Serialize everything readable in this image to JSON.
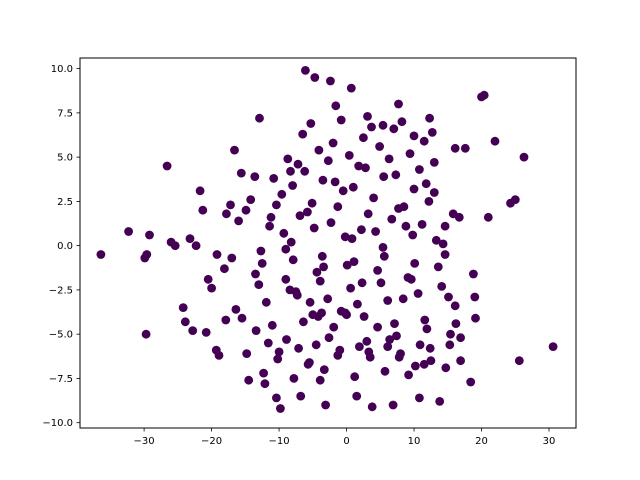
{
  "chart_data": {
    "type": "scatter",
    "title": "",
    "xlabel": "",
    "ylabel": "",
    "xlim": [
      -39.5,
      34
    ],
    "ylim": [
      -10.3,
      10.6
    ],
    "x_ticks": [
      -30,
      -20,
      -10,
      0,
      10,
      20,
      30
    ],
    "x_tick_labels": [
      "−30",
      "−20",
      "−10",
      "0",
      "10",
      "20",
      "30"
    ],
    "y_ticks": [
      -10.0,
      -7.5,
      -5.0,
      -2.5,
      0.0,
      2.5,
      5.0,
      7.5,
      10.0
    ],
    "y_tick_labels": [
      "−10.0",
      "−7.5",
      "−5.0",
      "−2.5",
      "0.0",
      "2.5",
      "5.0",
      "7.5",
      "10.0"
    ],
    "grid": false,
    "marker_color": "#440154",
    "series": [
      {
        "x": [
          -36.4,
          -32.3,
          -29.9,
          -29.6,
          -29.7,
          -29.2,
          -26.6,
          -26.0,
          -25.4,
          -24.2,
          -23.9,
          -23.2,
          -22.8,
          -22.3,
          -21.7,
          -21.3,
          -20.5,
          -20.0,
          -19.2,
          -18.9,
          -17.8,
          -17.2,
          -16.6,
          -15.6,
          -14.5,
          -13.6,
          -12.9,
          -12.1,
          -11.2,
          -10.4,
          -9.8,
          -9.0,
          -8.3,
          -7.5,
          -6.8,
          -6.1,
          -5.4,
          -4.7,
          -3.9,
          -3.1,
          -2.4,
          -1.6,
          -0.8,
          0.0,
          0.7,
          1.5,
          2.3,
          3.1,
          3.8,
          4.6,
          5.4,
          6.1,
          6.9,
          7.7,
          8.4,
          9.2,
          10.0,
          10.8,
          11.5,
          12.3,
          13.0,
          13.8,
          14.6,
          15.3,
          16.1,
          16.9,
          17.6,
          18.4,
          19.1,
          20.0,
          21.0,
          22.0,
          24.3,
          25.0,
          26.3,
          25.6,
          30.6,
          20.4,
          18.8,
          -5.0,
          -3.7,
          -4.2,
          -0.2,
          -20.8,
          -17.9,
          -13.4,
          -8.9,
          -4.5,
          3.0,
          7.4,
          11.9,
          16.2,
          -19.3,
          -14.8,
          -10.2,
          -5.7,
          -1.3,
          3.3,
          7.8,
          12.4,
          16.9,
          -16.4,
          -11.9,
          -7.3,
          -2.8,
          1.6,
          6.1,
          10.6,
          15.1,
          -18.1,
          -13.5,
          -9.0,
          -4.4,
          0.1,
          4.6,
          9.1,
          13.6,
          -12.7,
          -8.2,
          -3.6,
          0.8,
          5.4,
          9.8,
          14.3,
          -16.0,
          -11.4,
          -6.9,
          -2.3,
          2.2,
          6.7,
          11.2,
          15.8,
          -14.2,
          -9.6,
          -5.1,
          -0.5,
          4.0,
          8.5,
          13.0,
          -10.8,
          -6.2,
          -1.7,
          2.8,
          7.3,
          11.8,
          -8.7,
          -4.1,
          0.4,
          4.9,
          9.4,
          -6.5,
          -2.0,
          2.5,
          7.0,
          11.5,
          -12.3,
          -7.8,
          -3.3,
          1.2,
          5.7,
          10.2,
          14.7,
          -15.5,
          -11.0,
          -6.4,
          -1.9,
          2.6,
          7.1,
          11.6,
          16.1,
          -13.0,
          -8.4,
          -3.9,
          0.6,
          5.1,
          9.6,
          14.1,
          -9.3,
          -4.8,
          -0.2,
          4.3,
          8.8,
          13.3,
          -17.0,
          -12.5,
          -7.9,
          -3.4,
          1.1,
          5.6,
          10.1,
          14.6,
          19.0,
          -14.9,
          -10.4,
          -5.8,
          -1.3,
          3.2,
          7.7,
          12.2,
          16.7,
          -11.6,
          -7.1,
          -2.6,
          1.9,
          6.4,
          10.9,
          15.4,
          -8.0,
          -3.5,
          1.0,
          5.5,
          10.0,
          -5.3,
          -0.8,
          3.7,
          8.2,
          12.7,
          -10.0,
          -5.5,
          -1.0,
          3.5,
          8.0,
          12.5,
          -7.2,
          -2.7,
          1.8,
          6.3,
          10.8
        ],
        "y": [
          -0.5,
          0.8,
          -0.7,
          -0.5,
          -5.0,
          0.6,
          4.5,
          0.2,
          0.0,
          -3.5,
          -4.3,
          0.4,
          -4.8,
          0.0,
          3.1,
          2.0,
          -1.9,
          -2.4,
          -0.5,
          -6.2,
          1.8,
          2.3,
          5.4,
          4.1,
          -7.6,
          3.9,
          7.2,
          -7.8,
          1.6,
          -8.6,
          -9.2,
          -0.2,
          4.2,
          -2.6,
          -8.5,
          9.9,
          -3.2,
          9.5,
          -7.6,
          -9.0,
          9.3,
          7.9,
          -3.7,
          -3.9,
          8.9,
          -8.5,
          -2.1,
          7.3,
          -9.1,
          -4.6,
          6.8,
          -5.7,
          -9.0,
          8.0,
          -3.0,
          -7.3,
          6.2,
          -8.6,
          -6.7,
          7.2,
          4.7,
          -8.8,
          1.1,
          -5.6,
          5.5,
          -6.5,
          5.5,
          -7.7,
          -4.1,
          8.4,
          1.6,
          5.9,
          2.4,
          2.6,
          5.0,
          -6.5,
          -5.7,
          8.5,
          -1.6,
          -3.9,
          -3.8,
          -4.0,
          -3.8,
          -4.9,
          -4.2,
          -4.8,
          -5.3,
          -5.6,
          -5.4,
          -5.1,
          -4.7,
          -4.4,
          -5.9,
          -6.1,
          -6.4,
          -6.7,
          -6.2,
          -6.0,
          -6.3,
          -5.8,
          -5.2,
          -3.6,
          -3.2,
          -2.8,
          -3.0,
          -3.3,
          -3.1,
          -2.7,
          -2.9,
          -1.3,
          -1.6,
          -1.9,
          -1.5,
          -1.1,
          -1.4,
          -1.8,
          -1.2,
          -0.3,
          0.2,
          -0.6,
          0.4,
          -0.1,
          0.6,
          0.1,
          1.4,
          1.1,
          1.7,
          1.3,
          0.9,
          1.5,
          1.2,
          1.8,
          2.6,
          2.9,
          2.4,
          3.1,
          2.7,
          2.2,
          3.0,
          3.8,
          4.2,
          3.6,
          4.4,
          4.0,
          3.5,
          4.9,
          5.4,
          5.1,
          5.6,
          5.2,
          6.3,
          5.8,
          6.1,
          6.6,
          5.9,
          -7.2,
          -7.5,
          -7.0,
          -7.4,
          -7.1,
          -6.8,
          -6.9,
          -4.1,
          -4.5,
          -4.3,
          -4.6,
          -4.0,
          -4.4,
          -4.2,
          -3.4,
          -2.2,
          -2.5,
          -2.0,
          -2.4,
          -2.1,
          -1.9,
          -2.3,
          0.7,
          1.0,
          0.5,
          0.8,
          1.1,
          0.3,
          -0.7,
          -1.0,
          -0.8,
          -1.2,
          -0.9,
          -0.6,
          -1.0,
          -0.5,
          -2.9,
          2.0,
          2.3,
          1.9,
          2.2,
          1.8,
          2.1,
          2.5,
          1.6,
          -5.5,
          -5.8,
          -5.2,
          -5.7,
          -5.3,
          -5.6,
          -5.0,
          3.4,
          3.7,
          3.3,
          3.9,
          3.2,
          6.9,
          7.1,
          6.7,
          7.0,
          6.4,
          -6.0,
          -6.6,
          -5.9,
          -6.3,
          -6.1,
          -6.5,
          4.6,
          4.8,
          4.5,
          4.9,
          4.3
        ]
      }
    ]
  }
}
